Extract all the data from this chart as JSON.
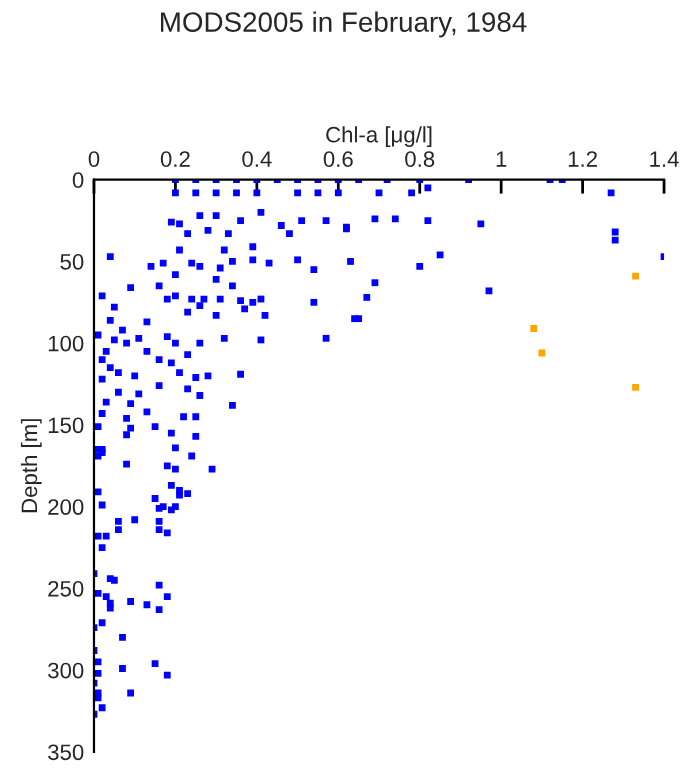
{
  "chart_data": {
    "type": "scatter",
    "title": "MODS2005 in February, 1984",
    "xlabel": "Chl-a [μg/l]",
    "ylabel": "Depth [m]",
    "xlim": [
      0,
      1.4
    ],
    "xticks": [
      0,
      0.2,
      0.4,
      0.6,
      0.8,
      1,
      1.2,
      1.4
    ],
    "ylim": [
      350,
      0
    ],
    "yticks": [
      0,
      50,
      100,
      150,
      200,
      250,
      300,
      350
    ],
    "grid": false,
    "marker": "square",
    "series": [
      {
        "color": "#0000ff",
        "x": [
          0.2,
          0.25,
          0.3,
          0.35,
          0.4,
          0.45,
          0.5,
          0.55,
          0.6,
          0.65,
          0.72,
          0.8,
          0.92,
          1.12,
          1.15,
          0.2,
          0.25,
          0.3,
          0.35,
          0.4,
          0.5,
          0.55,
          0.6,
          0.7,
          0.78,
          1.27,
          0.82,
          0.62,
          0.69,
          0.74,
          0.82,
          0.95,
          1.28,
          1.28,
          1.4,
          0.85,
          0.63,
          0.8,
          0.69,
          0.67,
          0.97,
          0.65,
          0.04,
          0.09,
          0.02,
          0.05,
          0.04,
          0.13,
          0.07,
          0.01,
          0.05,
          0.08,
          0.11,
          0.03,
          0.13,
          0.02,
          0.04,
          0.06,
          0.1,
          0.02,
          0.06,
          0.11,
          0.03,
          0.09,
          0.08,
          0.13,
          0.02,
          0.09,
          0.08,
          0.01,
          0.02,
          0.2,
          0.24,
          0.19,
          0.21,
          0.26,
          0.3,
          0.23,
          0.28,
          0.33,
          0.36,
          0.41,
          0.46,
          0.51,
          0.57,
          0.62,
          0.48,
          0.21,
          0.32,
          0.39,
          0.24,
          0.26,
          0.31,
          0.34,
          0.39,
          0.43,
          0.5,
          0.54,
          0.17,
          0.14,
          0.2,
          0.3,
          0.34,
          0.16,
          0.18,
          0.2,
          0.24,
          0.27,
          0.31,
          0.36,
          0.39,
          0.41,
          0.37,
          0.42,
          0.23,
          0.26,
          0.3,
          0.54,
          0.64,
          0.57,
          0.41,
          0.18,
          0.2,
          0.23,
          0.26,
          0.32,
          0.16,
          0.19,
          0.21,
          0.25,
          0.28,
          0.36,
          0.16,
          0.23,
          0.26,
          0.34,
          0.22,
          0.25,
          0.15,
          0.19,
          0.25,
          0.01,
          0.02,
          0.01,
          0.08,
          0.18,
          0.2,
          0.29,
          0.19,
          0.21,
          0.23,
          0.21,
          0.15,
          0.01,
          0.02,
          0.2,
          0.17,
          0.16,
          0.19,
          0.06,
          0.1,
          0.16,
          0.06,
          0.16,
          0.18,
          0.03,
          0.01,
          0.02,
          0.0,
          0.04,
          0.05,
          0.16,
          0.18,
          0.01,
          0.03,
          0.04,
          0.09,
          0.13,
          0.16,
          0.04,
          0.02,
          0.0,
          0.07,
          0.0,
          0.01,
          0.07,
          0.15,
          0.18,
          0.01,
          0.0,
          0.01,
          0.09,
          0.01,
          0.02,
          0.0
        ],
        "values": [
          0,
          0,
          0,
          0,
          0,
          0,
          0,
          0,
          0,
          0,
          0,
          0,
          0,
          0,
          0,
          8,
          8,
          8,
          8,
          8,
          8,
          8,
          8,
          8,
          8,
          8,
          5,
          30,
          24,
          24,
          25,
          27,
          32,
          37,
          47,
          46,
          50,
          53,
          63,
          72,
          68,
          85,
          47,
          66,
          71,
          78,
          86,
          87,
          92,
          95,
          98,
          100,
          97,
          105,
          105,
          110,
          115,
          118,
          120,
          122,
          130,
          131,
          136,
          137,
          146,
          142,
          143,
          152,
          156,
          165,
          167,
          164,
          169,
          26,
          27,
          22,
          22,
          33,
          31,
          33,
          25,
          20,
          28,
          25,
          25,
          29,
          33,
          43,
          43,
          41,
          51,
          53,
          54,
          50,
          49,
          51,
          49,
          55,
          51,
          53,
          58,
          61,
          65,
          65,
          73,
          71,
          73,
          73,
          73,
          74,
          75,
          73,
          79,
          83,
          81,
          77,
          83,
          75,
          85,
          97,
          98,
          96,
          100,
          107,
          100,
          97,
          110,
          112,
          118,
          121,
          120,
          119,
          126,
          128,
          132,
          138,
          145,
          145,
          151,
          155,
          157,
          151,
          165,
          169,
          174,
          175,
          177,
          177,
          187,
          190,
          192,
          193,
          195,
          191,
          199,
          200,
          200,
          201,
          202,
          209,
          208,
          209,
          214,
          214,
          216,
          218,
          218,
          225,
          241,
          244,
          245,
          248,
          255,
          253,
          255,
          259,
          258,
          260,
          263,
          262,
          271,
          274,
          280,
          288,
          295,
          299,
          296,
          303,
          302,
          308,
          314,
          314,
          317,
          323,
          327
        ]
      },
      {
        "color": "#ffa500",
        "x": [
          1.33,
          1.08,
          1.1,
          1.33
        ],
        "values": [
          59,
          91,
          106,
          127
        ]
      }
    ]
  }
}
